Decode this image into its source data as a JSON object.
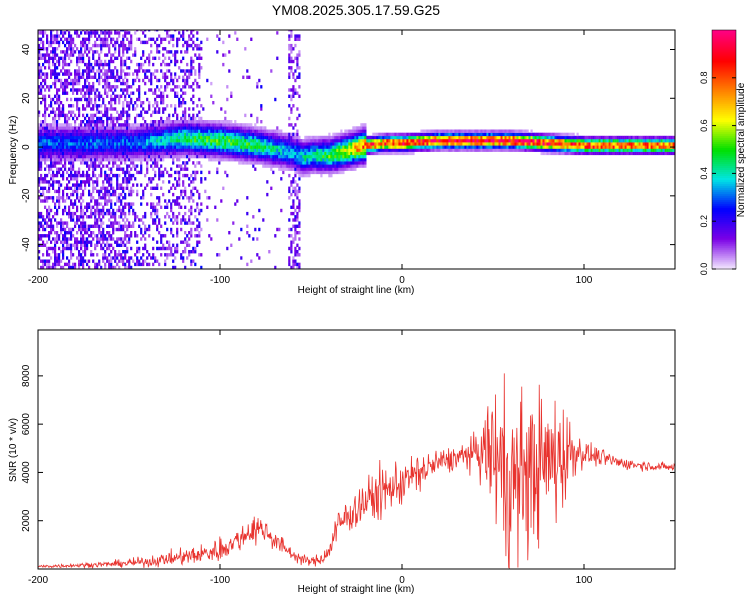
{
  "figure_title": "YM08.2025.305.17.59.G25",
  "chart_data": [
    {
      "type": "heatmap",
      "title": "YM08.2025.305.17.59.G25",
      "xlabel": "Height of straight line (km)",
      "ylabel": "Frequency (Hz)",
      "xlim": [
        -200,
        150
      ],
      "ylim": [
        -50,
        48
      ],
      "xticks": [
        -200,
        -100,
        0,
        100
      ],
      "xtick_labels": [
        "-200",
        "-100",
        "0",
        "100"
      ],
      "yticks": [
        -40,
        -20,
        0,
        20,
        40
      ],
      "ytick_labels": [
        "-40",
        "-20",
        "0",
        "20",
        "40"
      ],
      "colorbar": {
        "label": "Normalized spectral amplitude",
        "range": [
          0,
          1
        ],
        "ticks": [
          0.0,
          0.2,
          0.4,
          0.6,
          0.8
        ],
        "tick_labels": [
          "0.0",
          "0.2",
          "0.4",
          "0.6",
          "0.8"
        ],
        "colors": [
          "#f2e6ff",
          "#7a00e6",
          "#0000ff",
          "#00e5e5",
          "#00e000",
          "#ffff00",
          "#ff8000",
          "#ff0000",
          "#ff0080"
        ]
      },
      "ridge": {
        "x": [
          -200,
          -150,
          -120,
          -100,
          -80,
          -60,
          -55,
          -50,
          -45,
          -40,
          -35,
          -30,
          -25,
          -20,
          -10,
          0,
          20,
          40,
          60,
          80,
          100,
          120,
          150
        ],
        "freq": [
          1,
          1,
          3,
          2,
          0,
          -3,
          -5,
          -4,
          -4,
          -4,
          -3,
          -2,
          -1,
          0,
          1,
          1,
          2,
          2,
          2,
          1,
          0,
          0,
          0
        ],
        "peak_amplitude": [
          0.3,
          0.3,
          0.45,
          0.5,
          0.45,
          0.35,
          0.4,
          0.4,
          0.45,
          0.5,
          0.55,
          0.6,
          0.7,
          0.8,
          0.85,
          0.9,
          0.95,
          0.95,
          0.95,
          0.9,
          0.85,
          0.8,
          0.8
        ]
      }
    },
    {
      "type": "line",
      "xlabel": "Height of straight line (km)",
      "ylabel": "SNR (10 * v/v)",
      "xlim": [
        -200,
        150
      ],
      "ylim": [
        0,
        9900
      ],
      "xticks": [
        -200,
        -100,
        0,
        100
      ],
      "xtick_labels": [
        "-200",
        "-100",
        "0",
        "100"
      ],
      "yticks": [
        2000,
        4000,
        6000,
        8000
      ],
      "ytick_labels": [
        "2000",
        "4000",
        "6000",
        "8000"
      ],
      "color": "#e8332e",
      "series": [
        {
          "name": "SNR",
          "x": [
            -200,
            -180,
            -160,
            -140,
            -120,
            -110,
            -100,
            -95,
            -90,
            -85,
            -80,
            -75,
            -70,
            -65,
            -60,
            -55,
            -50,
            -45,
            -40,
            -38,
            -35,
            -30,
            -25,
            -20,
            -15,
            -10,
            -5,
            0,
            5,
            10,
            15,
            20,
            25,
            30,
            35,
            40,
            45,
            50,
            52,
            55,
            58,
            60,
            65,
            70,
            75,
            80,
            85,
            90,
            95,
            100,
            110,
            120,
            130,
            140,
            150
          ],
          "y": [
            100,
            150,
            200,
            300,
            500,
            600,
            800,
            1000,
            1200,
            1500,
            1700,
            1600,
            1200,
            900,
            600,
            400,
            300,
            400,
            700,
            1300,
            1800,
            2200,
            2500,
            2800,
            3000,
            3200,
            3400,
            3600,
            3800,
            4000,
            4200,
            4400,
            4500,
            4600,
            4700,
            4800,
            4850,
            4900,
            4500,
            4200,
            3800,
            3500,
            3800,
            4000,
            4200,
            4400,
            4600,
            4800,
            4900,
            4800,
            4600,
            4400,
            4300,
            4250,
            4200
          ],
          "oscillation_amplitude": [
            80,
            100,
            150,
            250,
            400,
            500,
            600,
            600,
            600,
            650,
            700,
            600,
            500,
            400,
            300,
            250,
            200,
            300,
            500,
            700,
            800,
            900,
            1000,
            1100,
            1200,
            1200,
            1200,
            1100,
            1000,
            900,
            800,
            700,
            600,
            600,
            700,
            800,
            1800,
            3000,
            4000,
            4200,
            4300,
            4300,
            4000,
            3800,
            3600,
            3500,
            3200,
            2600,
            1200,
            600,
            400,
            300,
            250,
            200,
            200
          ]
        }
      ]
    }
  ]
}
